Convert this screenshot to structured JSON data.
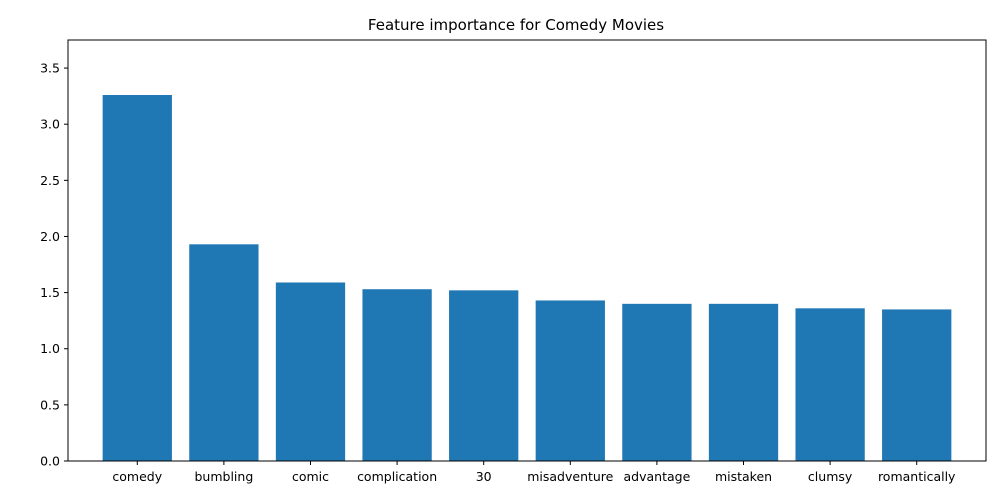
{
  "chart_data": {
    "type": "bar",
    "title": "Feature importance for Comedy Movies",
    "xlabel": "",
    "ylabel": "",
    "categories": [
      "comedy",
      "bumbling",
      "comic",
      "complication",
      "30",
      "misadventure",
      "advantage",
      "mistaken",
      "clumsy",
      "romantically"
    ],
    "values": [
      3.26,
      1.93,
      1.59,
      1.53,
      1.52,
      1.43,
      1.4,
      1.4,
      1.36,
      1.35
    ],
    "ylim": [
      0,
      3.75
    ],
    "yticks": [
      0.0,
      0.5,
      1.0,
      1.5,
      2.0,
      2.5,
      3.0,
      3.5
    ],
    "ytick_labels": [
      "0.0",
      "0.5",
      "1.0",
      "1.5",
      "2.0",
      "2.5",
      "3.0",
      "3.5"
    ],
    "grid": false,
    "legend": "none",
    "bar_color": "#1f77b4"
  }
}
